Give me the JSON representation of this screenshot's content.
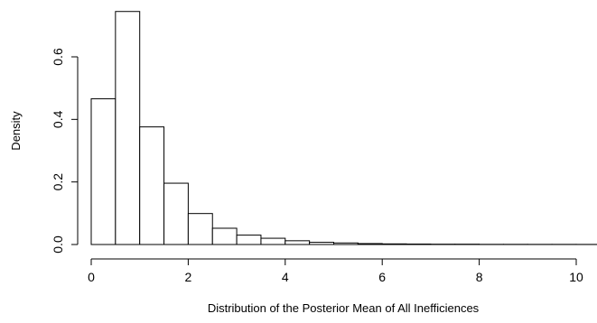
{
  "chart_data": {
    "type": "histogram",
    "xlabel": "Distribution of the Posterior Mean of All Inefficiences",
    "ylabel": "Density",
    "xlim": [
      0,
      10.4
    ],
    "ylim": [
      0,
      0.74
    ],
    "x_ticks": [
      0,
      2,
      4,
      6,
      8,
      10
    ],
    "y_ticks": [
      0.0,
      0.2,
      0.4,
      0.6
    ],
    "y_tick_labels": [
      "0.0",
      "0.2",
      "0.4",
      "0.6"
    ],
    "bin_width": 0.5,
    "bins": [
      {
        "x0": 0.0,
        "x1": 0.5,
        "density": 0.466
      },
      {
        "x0": 0.5,
        "x1": 1.0,
        "density": 0.745
      },
      {
        "x0": 1.0,
        "x1": 1.5,
        "density": 0.376
      },
      {
        "x0": 1.5,
        "x1": 2.0,
        "density": 0.196
      },
      {
        "x0": 2.0,
        "x1": 2.5,
        "density": 0.099
      },
      {
        "x0": 2.5,
        "x1": 3.0,
        "density": 0.052
      },
      {
        "x0": 3.0,
        "x1": 3.5,
        "density": 0.03
      },
      {
        "x0": 3.5,
        "x1": 4.0,
        "density": 0.02
      },
      {
        "x0": 4.0,
        "x1": 4.5,
        "density": 0.012
      },
      {
        "x0": 4.5,
        "x1": 5.0,
        "density": 0.007
      },
      {
        "x0": 5.0,
        "x1": 5.5,
        "density": 0.005
      },
      {
        "x0": 5.5,
        "x1": 6.0,
        "density": 0.003
      },
      {
        "x0": 6.0,
        "x1": 6.5,
        "density": 0.002
      },
      {
        "x0": 6.5,
        "x1": 7.0,
        "density": 0.0015
      },
      {
        "x0": 7.0,
        "x1": 7.5,
        "density": 0.001
      },
      {
        "x0": 7.5,
        "x1": 8.0,
        "density": 0.001
      },
      {
        "x0": 8.0,
        "x1": 8.5,
        "density": 0.0005
      },
      {
        "x0": 8.5,
        "x1": 9.0,
        "density": 0.0005
      },
      {
        "x0": 9.0,
        "x1": 9.5,
        "density": 0.0004
      },
      {
        "x0": 9.5,
        "x1": 10.0,
        "density": 0.0004
      },
      {
        "x0": 10.0,
        "x1": 10.5,
        "density": 0.0003
      }
    ]
  }
}
